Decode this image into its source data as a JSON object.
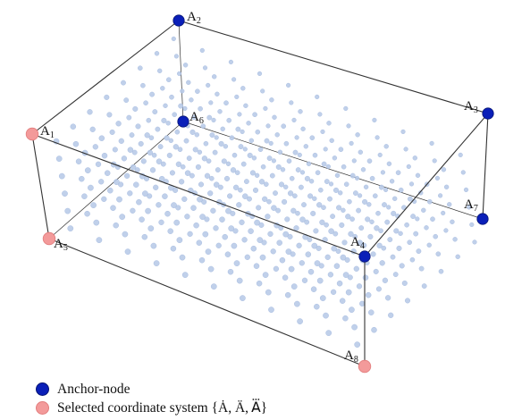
{
  "colors": {
    "anchor": "#0a1fb8",
    "selected": "#f39a9a",
    "selected_stroke": "#e27d7d",
    "lattice": "#b9cbe8",
    "lattice_stroke": "#9fb6dd",
    "box": "#333333"
  },
  "nodes": [
    {
      "id": "A1",
      "letter": "A",
      "index": "1",
      "kind": "selected"
    },
    {
      "id": "A2",
      "letter": "A",
      "index": "2",
      "kind": "anchor"
    },
    {
      "id": "A3",
      "letter": "A",
      "index": "3",
      "kind": "anchor"
    },
    {
      "id": "A4",
      "letter": "A",
      "index": "4",
      "kind": "anchor"
    },
    {
      "id": "A5",
      "letter": "A",
      "index": "5",
      "kind": "selected"
    },
    {
      "id": "A6",
      "letter": "A",
      "index": "6",
      "kind": "anchor"
    },
    {
      "id": "A7",
      "letter": "A",
      "index": "7",
      "kind": "anchor"
    },
    {
      "id": "A8",
      "letter": "A",
      "index": "8",
      "kind": "selected"
    }
  ],
  "legend": {
    "anchor_label": "Anchor-node",
    "selected_label": "Selected coordinate system {Ȧ, Ä, A⃛}"
  }
}
